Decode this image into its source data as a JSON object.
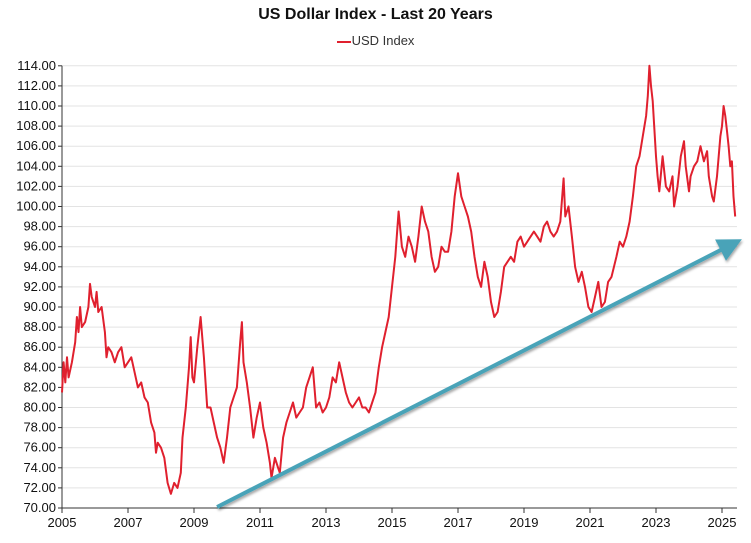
{
  "chart_data": {
    "type": "line",
    "title": "US Dollar Index - Last 20 Years",
    "xlabel": "",
    "ylabel": "",
    "xlim": [
      2005,
      2025.4
    ],
    "ylim": [
      70,
      114
    ],
    "grid": true,
    "legend_placement": "top",
    "x_ticks": [
      "2005",
      "2007",
      "2009",
      "2011",
      "2013",
      "2015",
      "2017",
      "2019",
      "2021",
      "2023",
      "2025"
    ],
    "y_ticks": [
      "70.00",
      "72.00",
      "74.00",
      "76.00",
      "78.00",
      "80.00",
      "82.00",
      "84.00",
      "86.00",
      "88.00",
      "90.00",
      "92.00",
      "94.00",
      "96.00",
      "98.00",
      "100.00",
      "102.00",
      "104.00",
      "106.00",
      "108.00",
      "110.00",
      "112.00",
      "114.00"
    ],
    "series": [
      {
        "name": "USD Index",
        "color": "#e0202e",
        "points": [
          [
            2005.0,
            81.5
          ],
          [
            2005.05,
            84.5
          ],
          [
            2005.1,
            82.5
          ],
          [
            2005.15,
            85
          ],
          [
            2005.2,
            83
          ],
          [
            2005.3,
            84.5
          ],
          [
            2005.4,
            86.5
          ],
          [
            2005.45,
            89
          ],
          [
            2005.5,
            87.5
          ],
          [
            2005.55,
            90
          ],
          [
            2005.6,
            88
          ],
          [
            2005.7,
            88.5
          ],
          [
            2005.8,
            90
          ],
          [
            2005.85,
            92.3
          ],
          [
            2005.9,
            91
          ],
          [
            2006.0,
            90
          ],
          [
            2006.05,
            91.5
          ],
          [
            2006.1,
            89.5
          ],
          [
            2006.2,
            90
          ],
          [
            2006.3,
            87.5
          ],
          [
            2006.35,
            85
          ],
          [
            2006.4,
            86
          ],
          [
            2006.5,
            85.5
          ],
          [
            2006.6,
            84.5
          ],
          [
            2006.7,
            85.5
          ],
          [
            2006.8,
            86
          ],
          [
            2006.9,
            84
          ],
          [
            2007.0,
            84.5
          ],
          [
            2007.1,
            85
          ],
          [
            2007.2,
            83.5
          ],
          [
            2007.3,
            82
          ],
          [
            2007.4,
            82.5
          ],
          [
            2007.5,
            81
          ],
          [
            2007.6,
            80.5
          ],
          [
            2007.7,
            78.5
          ],
          [
            2007.8,
            77.5
          ],
          [
            2007.85,
            75.5
          ],
          [
            2007.9,
            76.5
          ],
          [
            2008.0,
            76
          ],
          [
            2008.1,
            75
          ],
          [
            2008.2,
            72.5
          ],
          [
            2008.3,
            71.4
          ],
          [
            2008.4,
            72.5
          ],
          [
            2008.5,
            72
          ],
          [
            2008.6,
            73.5
          ],
          [
            2008.65,
            77
          ],
          [
            2008.75,
            80
          ],
          [
            2008.85,
            84
          ],
          [
            2008.9,
            87
          ],
          [
            2008.95,
            83
          ],
          [
            2009.0,
            82.5
          ],
          [
            2009.1,
            86
          ],
          [
            2009.2,
            89
          ],
          [
            2009.3,
            85
          ],
          [
            2009.4,
            80
          ],
          [
            2009.5,
            80
          ],
          [
            2009.6,
            78.5
          ],
          [
            2009.7,
            77
          ],
          [
            2009.8,
            76
          ],
          [
            2009.9,
            74.5
          ],
          [
            2010.0,
            77
          ],
          [
            2010.1,
            80
          ],
          [
            2010.2,
            81
          ],
          [
            2010.3,
            82
          ],
          [
            2010.4,
            86.5
          ],
          [
            2010.45,
            88.5
          ],
          [
            2010.5,
            84.5
          ],
          [
            2010.6,
            82.5
          ],
          [
            2010.7,
            80
          ],
          [
            2010.8,
            77
          ],
          [
            2010.9,
            79
          ],
          [
            2011.0,
            80.5
          ],
          [
            2011.1,
            78
          ],
          [
            2011.2,
            76.5
          ],
          [
            2011.3,
            74.5
          ],
          [
            2011.35,
            73
          ],
          [
            2011.45,
            75
          ],
          [
            2011.55,
            74
          ],
          [
            2011.6,
            73.5
          ],
          [
            2011.7,
            77
          ],
          [
            2011.8,
            78.5
          ],
          [
            2011.9,
            79.5
          ],
          [
            2012.0,
            80.5
          ],
          [
            2012.1,
            79
          ],
          [
            2012.2,
            79.5
          ],
          [
            2012.3,
            80
          ],
          [
            2012.4,
            82
          ],
          [
            2012.5,
            83
          ],
          [
            2012.6,
            84
          ],
          [
            2012.7,
            80
          ],
          [
            2012.8,
            80.5
          ],
          [
            2012.9,
            79.5
          ],
          [
            2013.0,
            80
          ],
          [
            2013.1,
            81
          ],
          [
            2013.2,
            83
          ],
          [
            2013.3,
            82.5
          ],
          [
            2013.4,
            84.5
          ],
          [
            2013.5,
            83
          ],
          [
            2013.6,
            81.5
          ],
          [
            2013.7,
            80.5
          ],
          [
            2013.8,
            80
          ],
          [
            2013.9,
            80.5
          ],
          [
            2014.0,
            81
          ],
          [
            2014.1,
            80
          ],
          [
            2014.2,
            80
          ],
          [
            2014.3,
            79.5
          ],
          [
            2014.4,
            80.5
          ],
          [
            2014.5,
            81.5
          ],
          [
            2014.6,
            84
          ],
          [
            2014.7,
            86
          ],
          [
            2014.8,
            87.5
          ],
          [
            2014.9,
            89
          ],
          [
            2015.0,
            92
          ],
          [
            2015.1,
            95
          ],
          [
            2015.2,
            99.5
          ],
          [
            2015.3,
            96
          ],
          [
            2015.4,
            95
          ],
          [
            2015.5,
            97
          ],
          [
            2015.6,
            96
          ],
          [
            2015.7,
            94.5
          ],
          [
            2015.8,
            97
          ],
          [
            2015.9,
            100
          ],
          [
            2016.0,
            98.5
          ],
          [
            2016.1,
            97.5
          ],
          [
            2016.2,
            95
          ],
          [
            2016.3,
            93.5
          ],
          [
            2016.4,
            94
          ],
          [
            2016.5,
            96
          ],
          [
            2016.6,
            95.5
          ],
          [
            2016.7,
            95.5
          ],
          [
            2016.8,
            97.5
          ],
          [
            2016.9,
            101
          ],
          [
            2017.0,
            103.3
          ],
          [
            2017.1,
            101
          ],
          [
            2017.2,
            100
          ],
          [
            2017.3,
            99
          ],
          [
            2017.4,
            97.5
          ],
          [
            2017.5,
            95
          ],
          [
            2017.6,
            93
          ],
          [
            2017.7,
            92
          ],
          [
            2017.8,
            94.5
          ],
          [
            2017.9,
            93
          ],
          [
            2018.0,
            90.5
          ],
          [
            2018.1,
            89
          ],
          [
            2018.2,
            89.5
          ],
          [
            2018.3,
            91.5
          ],
          [
            2018.4,
            94
          ],
          [
            2018.5,
            94.5
          ],
          [
            2018.6,
            95
          ],
          [
            2018.7,
            94.5
          ],
          [
            2018.8,
            96.5
          ],
          [
            2018.9,
            97
          ],
          [
            2019.0,
            96
          ],
          [
            2019.1,
            96.5
          ],
          [
            2019.2,
            97
          ],
          [
            2019.3,
            97.5
          ],
          [
            2019.4,
            97
          ],
          [
            2019.5,
            96.5
          ],
          [
            2019.6,
            98
          ],
          [
            2019.7,
            98.5
          ],
          [
            2019.8,
            97.5
          ],
          [
            2019.9,
            97
          ],
          [
            2020.0,
            97.5
          ],
          [
            2020.1,
            98.5
          ],
          [
            2020.2,
            102.8
          ],
          [
            2020.25,
            99
          ],
          [
            2020.35,
            100
          ],
          [
            2020.45,
            97
          ],
          [
            2020.55,
            94
          ],
          [
            2020.65,
            92.5
          ],
          [
            2020.75,
            93.5
          ],
          [
            2020.85,
            92
          ],
          [
            2020.95,
            90
          ],
          [
            2021.05,
            89.5
          ],
          [
            2021.15,
            91
          ],
          [
            2021.25,
            92.5
          ],
          [
            2021.35,
            90
          ],
          [
            2021.45,
            90.5
          ],
          [
            2021.55,
            92.5
          ],
          [
            2021.65,
            93
          ],
          [
            2021.8,
            95
          ],
          [
            2021.9,
            96.5
          ],
          [
            2022.0,
            96
          ],
          [
            2022.1,
            97
          ],
          [
            2022.2,
            98.5
          ],
          [
            2022.3,
            101
          ],
          [
            2022.4,
            104
          ],
          [
            2022.5,
            105
          ],
          [
            2022.6,
            107
          ],
          [
            2022.7,
            109
          ],
          [
            2022.75,
            111
          ],
          [
            2022.8,
            114
          ],
          [
            2022.85,
            112
          ],
          [
            2022.9,
            110.5
          ],
          [
            2023.0,
            105
          ],
          [
            2023.05,
            103
          ],
          [
            2023.1,
            101.5
          ],
          [
            2023.2,
            105
          ],
          [
            2023.3,
            102
          ],
          [
            2023.4,
            101.5
          ],
          [
            2023.5,
            103
          ],
          [
            2023.55,
            100
          ],
          [
            2023.65,
            102
          ],
          [
            2023.75,
            105
          ],
          [
            2023.85,
            106.5
          ],
          [
            2023.9,
            104
          ],
          [
            2024.0,
            101.5
          ],
          [
            2024.05,
            103
          ],
          [
            2024.15,
            104
          ],
          [
            2024.25,
            104.5
          ],
          [
            2024.35,
            106
          ],
          [
            2024.45,
            104.5
          ],
          [
            2024.55,
            105.5
          ],
          [
            2024.6,
            103
          ],
          [
            2024.7,
            101
          ],
          [
            2024.75,
            100.5
          ],
          [
            2024.85,
            103
          ],
          [
            2024.95,
            107
          ],
          [
            2025.0,
            108
          ],
          [
            2025.05,
            110
          ],
          [
            2025.1,
            109
          ],
          [
            2025.15,
            107.5
          ],
          [
            2025.2,
            106
          ],
          [
            2025.25,
            104
          ],
          [
            2025.3,
            104.5
          ],
          [
            2025.35,
            101
          ],
          [
            2025.4,
            99
          ]
        ]
      }
    ],
    "annotations": [
      {
        "type": "trend-arrow",
        "color": "#4aa3b8",
        "from": [
          2009.7,
          70.1
        ],
        "to": [
          2025.4,
          96.4
        ]
      }
    ]
  }
}
